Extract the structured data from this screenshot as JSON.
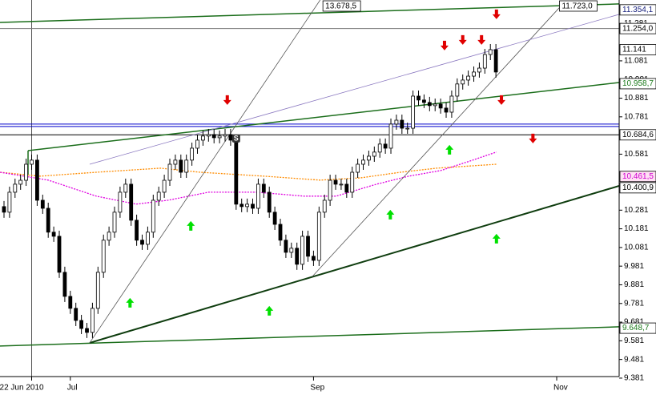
{
  "chart_data": {
    "type": "candlestick",
    "x": [
      0,
      1,
      2,
      3,
      4,
      5,
      6,
      7,
      8,
      9,
      10,
      11,
      12,
      13,
      14,
      15,
      16,
      17,
      18,
      19,
      20,
      21,
      22,
      23,
      24,
      25,
      26,
      27,
      28,
      29,
      30,
      31,
      32,
      33,
      34,
      35,
      36,
      37,
      38,
      39,
      40,
      41,
      42,
      43,
      44,
      45,
      46,
      47,
      48,
      49,
      50,
      51,
      52,
      53,
      54,
      55,
      56,
      57,
      58,
      59,
      60,
      61,
      62,
      63,
      64,
      65,
      66,
      67,
      68,
      69,
      70,
      71,
      72,
      73,
      74,
      75,
      76,
      77,
      78,
      79,
      80,
      81,
      82,
      83,
      84,
      85,
      86,
      87,
      88,
      89
    ],
    "open": [
      10.3,
      10.27,
      10.377,
      10.42,
      10.441,
      10.527,
      10.549,
      10.334,
      10.291,
      10.163,
      10.141,
      9.948,
      9.819,
      9.755,
      9.69,
      9.647,
      9.626,
      9.755,
      9.948,
      10.12,
      10.163,
      10.27,
      10.377,
      10.42,
      10.227,
      10.12,
      10.098,
      10.163,
      10.334,
      10.377,
      10.441,
      10.527,
      10.549,
      10.484,
      10.549,
      10.613,
      10.656,
      10.678,
      10.686,
      10.669,
      10.678,
      10.686,
      10.656,
      10.313,
      10.3,
      10.313,
      10.291,
      10.42,
      10.377,
      10.27,
      10.205,
      10.12,
      10.055,
      10.077,
      9.991,
      10.141,
      10.034,
      10.012,
      10.27,
      10.334,
      10.441,
      10.42,
      10.42,
      10.377,
      10.484,
      10.527,
      10.549,
      10.57,
      10.592,
      10.635,
      10.613,
      10.742,
      10.763,
      10.72,
      10.72,
      10.892,
      10.871,
      10.858,
      10.841,
      10.849,
      10.828,
      10.806,
      10.892,
      10.957,
      10.978,
      10.999,
      11.021,
      11.042,
      11.115,
      11.141
    ],
    "high": [
      10.33,
      10.407,
      10.45,
      10.471,
      10.557,
      10.579,
      10.579,
      10.364,
      10.321,
      10.193,
      10.171,
      9.978,
      9.849,
      9.785,
      9.72,
      9.677,
      9.785,
      9.978,
      10.15,
      10.193,
      10.3,
      10.407,
      10.45,
      10.45,
      10.257,
      10.15,
      10.193,
      10.364,
      10.407,
      10.471,
      10.557,
      10.579,
      10.579,
      10.579,
      10.643,
      10.686,
      10.708,
      10.716,
      10.716,
      10.708,
      10.716,
      10.716,
      10.686,
      10.343,
      10.343,
      10.343,
      10.45,
      10.45,
      10.407,
      10.3,
      10.235,
      10.15,
      10.107,
      10.107,
      10.171,
      10.171,
      10.064,
      10.3,
      10.364,
      10.471,
      10.471,
      10.45,
      10.45,
      10.514,
      10.557,
      10.579,
      10.6,
      10.622,
      10.665,
      10.665,
      10.772,
      10.793,
      10.793,
      10.75,
      10.922,
      10.922,
      10.901,
      10.888,
      10.879,
      10.879,
      10.858,
      10.922,
      10.987,
      11.008,
      11.029,
      11.051,
      11.072,
      11.145,
      11.171,
      11.171
    ],
    "low": [
      10.24,
      10.24,
      10.347,
      10.39,
      10.411,
      10.497,
      10.304,
      10.261,
      10.133,
      10.111,
      9.918,
      9.789,
      9.725,
      9.66,
      9.617,
      9.596,
      9.596,
      9.725,
      9.918,
      10.09,
      10.133,
      10.24,
      10.347,
      10.197,
      10.09,
      10.068,
      10.068,
      10.133,
      10.304,
      10.347,
      10.411,
      10.497,
      10.454,
      10.454,
      10.519,
      10.583,
      10.626,
      10.648,
      10.639,
      10.639,
      10.648,
      10.626,
      10.283,
      10.27,
      10.27,
      10.261,
      10.261,
      10.347,
      10.24,
      10.175,
      10.09,
      10.025,
      10.025,
      9.961,
      9.961,
      10.004,
      9.982,
      9.982,
      10.24,
      10.304,
      10.39,
      10.39,
      10.347,
      10.347,
      10.454,
      10.497,
      10.519,
      10.54,
      10.562,
      10.583,
      10.583,
      10.712,
      10.69,
      10.69,
      10.69,
      10.841,
      10.828,
      10.811,
      10.811,
      10.798,
      10.776,
      10.776,
      10.862,
      10.927,
      10.948,
      10.969,
      10.991,
      11.012,
      11.085,
      10.991
    ],
    "close": [
      10.27,
      10.377,
      10.42,
      10.441,
      10.527,
      10.549,
      10.334,
      10.291,
      10.163,
      10.141,
      9.948,
      9.819,
      9.755,
      9.69,
      9.647,
      9.626,
      9.755,
      9.948,
      10.12,
      10.163,
      10.27,
      10.377,
      10.42,
      10.227,
      10.12,
      10.098,
      10.163,
      10.334,
      10.377,
      10.441,
      10.527,
      10.549,
      10.484,
      10.549,
      10.613,
      10.656,
      10.678,
      10.686,
      10.669,
      10.678,
      10.686,
      10.656,
      10.313,
      10.3,
      10.313,
      10.291,
      10.42,
      10.377,
      10.27,
      10.205,
      10.12,
      10.055,
      10.077,
      9.991,
      10.141,
      10.034,
      10.012,
      10.27,
      10.334,
      10.441,
      10.42,
      10.42,
      10.377,
      10.484,
      10.527,
      10.549,
      10.57,
      10.592,
      10.635,
      10.613,
      10.742,
      10.763,
      10.72,
      10.72,
      10.892,
      10.871,
      10.858,
      10.841,
      10.849,
      10.828,
      10.806,
      10.892,
      10.957,
      10.978,
      10.999,
      11.021,
      11.042,
      11.115,
      11.141,
      11.021
    ],
    "up_color": "#ffffff",
    "down_color": "#000000",
    "xlim": [
      -0.725,
      111.3
    ],
    "ylim": [
      9.355,
      11.407
    ],
    "xticks": [
      {
        "value": 5,
        "label": "22 Jun 2010"
      },
      {
        "value": 12,
        "label": "Jul"
      },
      {
        "value": 56,
        "label": "Sep"
      },
      {
        "value": 100,
        "label": "Nov"
      }
    ],
    "vline": 5,
    "yticks": [
      11.281,
      11.081,
      10.981,
      10.881,
      10.781,
      10.581,
      10.281,
      10.181,
      10.081,
      9.981,
      9.881,
      9.781,
      9.681,
      9.581,
      9.481,
      9.381
    ],
    "price_labels": [
      {
        "value": 11.3541,
        "label": "11.354,1",
        "color": "#1a237e",
        "bg": "#ffffff"
      },
      {
        "value": 11.254,
        "label": "11.254,0",
        "color": "#000000",
        "bg": "#ffffff"
      },
      {
        "value": 11.141,
        "label": "11.141",
        "color": "#000000",
        "bg": "#ffffff"
      },
      {
        "value": 10.9587,
        "label": "10.958,7",
        "color": "#1b7a1b",
        "bg": "#ffffff"
      },
      {
        "value": 10.6846,
        "label": "10.684,6",
        "color": "#000000",
        "bg": "#ffffff"
      },
      {
        "value": 10.4615,
        "label": "10.461,5",
        "color": "#d000d0",
        "bg": "#ffe0f4"
      },
      {
        "value": 10.4009,
        "label": "10.400,9",
        "color": "#000000",
        "bg": "#ffffff"
      },
      {
        "value": 9.6487,
        "label": "9.648,7",
        "color": "#1b7a1b",
        "bg": "#ffffff"
      }
    ],
    "hlines": [
      {
        "value": 11.254,
        "color": "#777777"
      },
      {
        "value": 10.742,
        "color": "#0000cc"
      },
      {
        "value": 10.729,
        "color": "#0000cc"
      },
      {
        "value": 10.6846,
        "color": "#000000"
      }
    ],
    "lines": [
      {
        "x": [
          -0.725,
          111.3
        ],
        "y": [
          9.553,
          9.656
        ],
        "color": "#1b6e1b",
        "width": 1.5
      },
      {
        "x": [
          15.5,
          111.3
        ],
        "y": [
          9.57,
          10.411
        ],
        "color": "#0f3d0f",
        "width": 2
      },
      {
        "x": [
          4.35,
          111.3
        ],
        "y": [
          10.6,
          10.965
        ],
        "color": "#1b6e1b",
        "width": 1.5
      },
      {
        "x": [
          -0.725,
          111.3
        ],
        "y": [
          11.287,
          11.386
        ],
        "color": "#1b6e1b",
        "width": 1.5
      },
      {
        "x": [
          15.5,
          57.2
        ],
        "y": [
          9.57,
          11.407
        ],
        "color": "#555555",
        "width": 0.8
      },
      {
        "x": [
          55.8,
          100.7
        ],
        "y": [
          9.926,
          11.373
        ],
        "color": "#555555",
        "width": 0.8
      },
      {
        "x": [
          15.5,
          111.3
        ],
        "y": [
          10.527,
          11.33
        ],
        "color": "#8a78c0",
        "width": 0.8
      },
      {
        "x": [
          4.35,
          4.35
        ],
        "y": [
          10.6,
          10.472
        ],
        "color": "#1b6e1b",
        "width": 1.5
      }
    ],
    "averages": [
      {
        "color": "#ff8c00",
        "x": [
          -0.7,
          6.5,
          16.7,
          28.3,
          35.5,
          47.1,
          57.2,
          64.5,
          71.7,
          78.3,
          89.1
        ],
        "values": [
          10.484,
          10.463,
          10.484,
          10.506,
          10.484,
          10.463,
          10.442,
          10.454,
          10.484,
          10.506,
          10.527
        ]
      },
      {
        "color": "#e000e0",
        "x": [
          -0.7,
          8.0,
          16.7,
          23.9,
          29.7,
          37.0,
          45.7,
          54.3,
          60.1,
          67.4,
          73.2,
          79.0,
          84.8,
          89.1
        ],
        "values": [
          10.484,
          10.442,
          10.356,
          10.313,
          10.334,
          10.377,
          10.377,
          10.356,
          10.356,
          10.42,
          10.463,
          10.493,
          10.549,
          10.592
        ]
      }
    ],
    "sell_signals": {
      "color": "#e00000",
      "x": [
        89.1,
        79.7,
        83.0,
        86.4,
        40.4,
        90.0,
        95.7
      ],
      "y": [
        11.33,
        11.163,
        11.193,
        11.193,
        10.871,
        10.871,
        10.665
      ]
    },
    "buy_signals": {
      "color": "#00e000",
      "x": [
        33.8,
        22.8,
        48.0,
        69.9,
        80.6,
        89.1
      ],
      "y": [
        10.197,
        9.785,
        9.742,
        10.257,
        10.605,
        10.128
      ]
    },
    "marker": {
      "x": 42,
      "y": 10.665,
      "text": "S"
    },
    "top_labels": [
      {
        "x": 57.7,
        "label": "13.678,5"
      },
      {
        "x": 100.5,
        "label": "11.723,0"
      }
    ]
  }
}
